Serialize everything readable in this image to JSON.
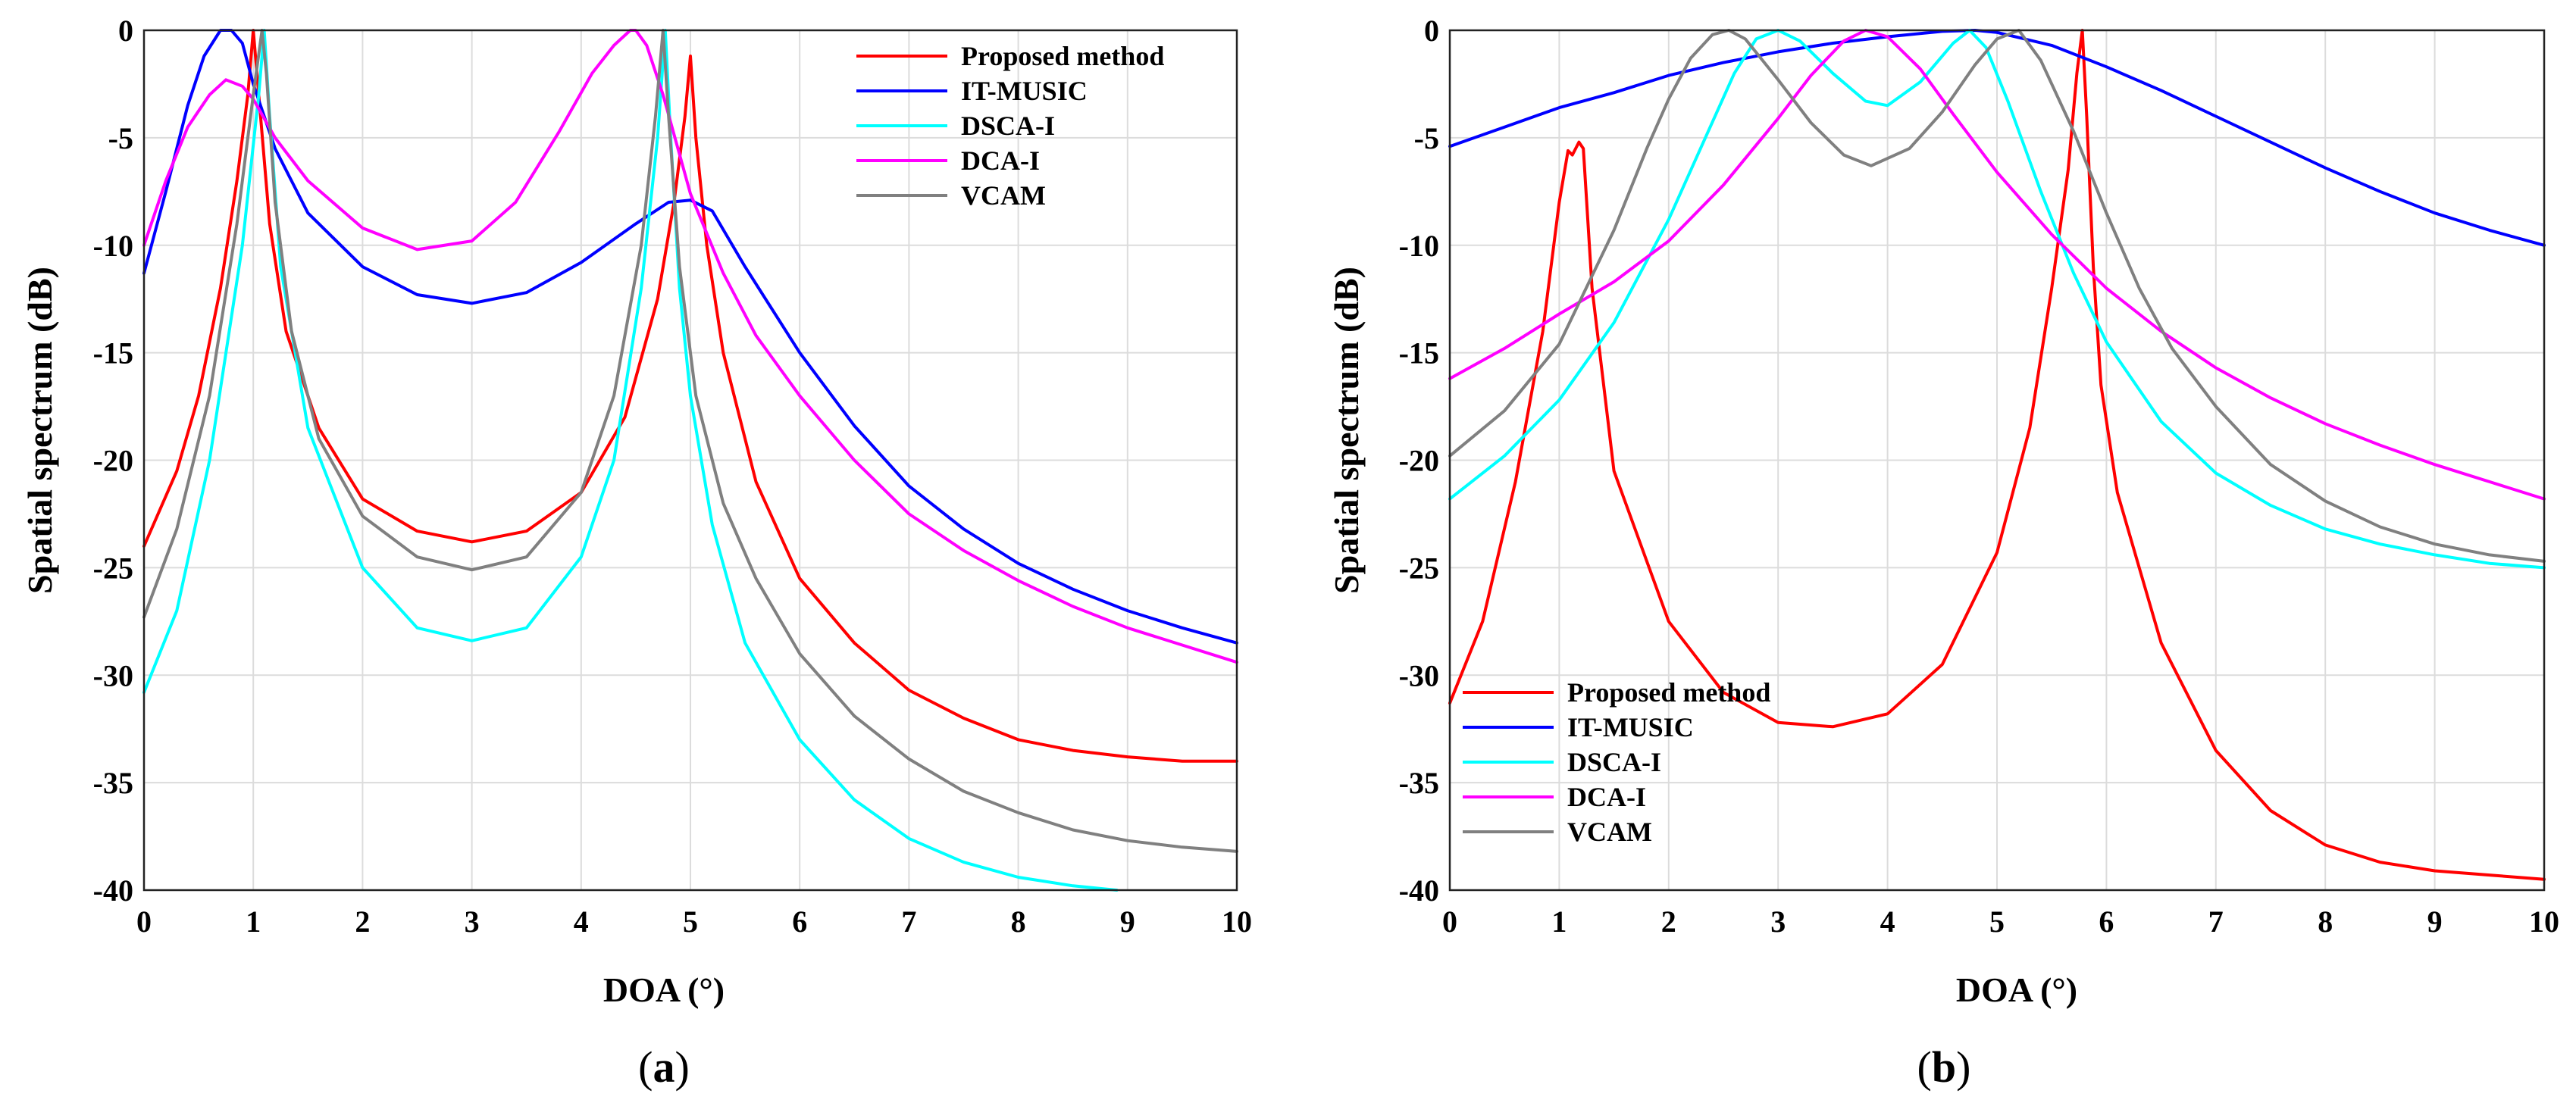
{
  "chart_data": [
    {
      "panel": "a",
      "caption": "(a)",
      "caption_letter": "a",
      "type": "line",
      "xlabel": "DOA (°)",
      "ylabel": "Spatial spectrum (dB)",
      "xlim": [
        0,
        10
      ],
      "ylim": [
        -40,
        0
      ],
      "xticks": [
        0,
        1,
        2,
        3,
        4,
        5,
        6,
        7,
        8,
        9,
        10
      ],
      "yticks": [
        0,
        -5,
        -10,
        -15,
        -20,
        -25,
        -30,
        -35,
        -40
      ],
      "grid": true,
      "legend_position": "top-right",
      "series": [
        {
          "name": "Proposed method",
          "color": "#ff0000",
          "x": [
            0,
            0.3,
            0.5,
            0.7,
            0.85,
            0.95,
            1.0,
            1.05,
            1.15,
            1.3,
            1.6,
            2.0,
            2.5,
            3.0,
            3.5,
            4.0,
            4.4,
            4.7,
            4.85,
            4.95,
            5.0,
            5.05,
            5.15,
            5.3,
            5.6,
            6.0,
            6.5,
            7.0,
            7.5,
            8.0,
            8.5,
            9.0,
            9.5,
            10
          ],
          "y": [
            -24,
            -20.5,
            -17,
            -12,
            -7,
            -3,
            0,
            -3,
            -9,
            -14,
            -18.5,
            -21.8,
            -23.3,
            -23.8,
            -23.3,
            -21.5,
            -18,
            -12.5,
            -8,
            -4,
            -1.2,
            -5,
            -10,
            -15,
            -21,
            -25.5,
            -28.5,
            -30.7,
            -32,
            -33,
            -33.5,
            -33.8,
            -34,
            -34
          ]
        },
        {
          "name": "IT-MUSIC",
          "color": "#0000ff",
          "x": [
            0,
            0.2,
            0.4,
            0.55,
            0.7,
            0.8,
            0.9,
            1.0,
            1.2,
            1.5,
            2.0,
            2.5,
            3.0,
            3.5,
            4.0,
            4.5,
            4.8,
            5.0,
            5.2,
            5.5,
            6.0,
            6.5,
            7.0,
            7.5,
            8.0,
            8.5,
            9.0,
            9.5,
            10
          ],
          "y": [
            -11.3,
            -7.5,
            -3.5,
            -1.2,
            0,
            0,
            -0.6,
            -2.5,
            -5.5,
            -8.5,
            -11,
            -12.3,
            -12.7,
            -12.2,
            -10.8,
            -9,
            -8,
            -7.9,
            -8.4,
            -11,
            -15,
            -18.4,
            -21.2,
            -23.2,
            -24.8,
            -26,
            -27,
            -27.8,
            -28.5
          ]
        },
        {
          "name": "DSCA-I",
          "color": "#00ffff",
          "x": [
            0,
            0.3,
            0.6,
            0.9,
            1.05,
            1.1,
            1.15,
            1.25,
            1.5,
            2.0,
            2.5,
            3.0,
            3.5,
            4.0,
            4.3,
            4.55,
            4.7,
            4.77,
            4.82,
            4.9,
            5.0,
            5.2,
            5.5,
            6.0,
            6.5,
            7.0,
            7.5,
            8.0,
            8.5,
            8.9
          ],
          "y": [
            -30.8,
            -27,
            -20,
            -10,
            -3,
            0,
            -4,
            -11,
            -18.5,
            -25,
            -27.8,
            -28.4,
            -27.8,
            -24.5,
            -20,
            -12,
            -5,
            0,
            -5,
            -12,
            -17,
            -23,
            -28.5,
            -33,
            -35.8,
            -37.6,
            -38.7,
            -39.4,
            -39.8,
            -40
          ]
        },
        {
          "name": "DCA-I",
          "color": "#ff00ff",
          "x": [
            0,
            0.2,
            0.4,
            0.6,
            0.75,
            0.9,
            1.0,
            1.2,
            1.5,
            2.0,
            2.5,
            3.0,
            3.4,
            3.8,
            4.1,
            4.3,
            4.45,
            4.5,
            4.6,
            4.75,
            5.0,
            5.3,
            5.6,
            6.0,
            6.5,
            7.0,
            7.5,
            8.0,
            8.5,
            9.0,
            9.5,
            10
          ],
          "y": [
            -10,
            -7,
            -4.5,
            -3,
            -2.3,
            -2.6,
            -3.2,
            -5,
            -7,
            -9.2,
            -10.2,
            -9.8,
            -8,
            -4.7,
            -2,
            -0.7,
            0,
            0,
            -0.7,
            -3,
            -7.6,
            -11.3,
            -14.2,
            -17,
            -20,
            -22.5,
            -24.2,
            -25.6,
            -26.8,
            -27.8,
            -28.6,
            -29.4
          ]
        },
        {
          "name": "VCAM",
          "color": "#808080",
          "x": [
            0,
            0.3,
            0.6,
            0.85,
            1.0,
            1.08,
            1.12,
            1.2,
            1.35,
            1.6,
            2.0,
            2.5,
            3.0,
            3.5,
            4.0,
            4.3,
            4.55,
            4.68,
            4.75,
            4.8,
            4.9,
            5.05,
            5.3,
            5.6,
            6.0,
            6.5,
            7.0,
            7.5,
            8.0,
            8.5,
            9.0,
            9.5,
            10
          ],
          "y": [
            -27.3,
            -23.2,
            -17,
            -9,
            -3,
            0,
            -2,
            -8,
            -14,
            -19,
            -22.6,
            -24.5,
            -25.1,
            -24.5,
            -21.5,
            -17,
            -10,
            -4,
            0,
            -4,
            -11,
            -17,
            -22,
            -25.5,
            -29,
            -31.9,
            -33.9,
            -35.4,
            -36.4,
            -37.2,
            -37.7,
            -38,
            -38.2
          ]
        }
      ]
    },
    {
      "panel": "b",
      "caption": "(b)",
      "caption_letter": "b",
      "type": "line",
      "xlabel": "DOA (°)",
      "ylabel": "Spatial spectrum (dB)",
      "xlim": [
        0,
        10
      ],
      "ylim": [
        -40,
        0
      ],
      "xticks": [
        0,
        1,
        2,
        3,
        4,
        5,
        6,
        7,
        8,
        9,
        10
      ],
      "yticks": [
        0,
        -5,
        -10,
        -15,
        -20,
        -25,
        -30,
        -35,
        -40
      ],
      "grid": true,
      "legend_position": "bottom-left",
      "series": [
        {
          "name": "Proposed method",
          "color": "#ff0000",
          "x": [
            0,
            0.3,
            0.6,
            0.85,
            1.0,
            1.08,
            1.12,
            1.18,
            1.22,
            1.3,
            1.5,
            2.0,
            2.5,
            3.0,
            3.5,
            4.0,
            4.5,
            5.0,
            5.3,
            5.5,
            5.65,
            5.73,
            5.78,
            5.82,
            5.88,
            5.95,
            6.1,
            6.5,
            7.0,
            7.5,
            8.0,
            8.5,
            9.0,
            9.5,
            10
          ],
          "y": [
            -31.3,
            -27.5,
            -21,
            -14,
            -8,
            -5.6,
            -5.8,
            -5.2,
            -5.5,
            -12,
            -20.5,
            -27.5,
            -30.8,
            -32.2,
            -32.4,
            -31.8,
            -29.5,
            -24.3,
            -18.5,
            -12,
            -6.5,
            -2,
            0,
            -4,
            -11,
            -16.5,
            -21.5,
            -28.5,
            -33.5,
            -36.3,
            -37.9,
            -38.7,
            -39.1,
            -39.3,
            -39.5
          ]
        },
        {
          "name": "IT-MUSIC",
          "color": "#0000ff",
          "x": [
            0,
            0.5,
            1.0,
            1.5,
            2.0,
            2.5,
            3.0,
            3.5,
            4.0,
            4.5,
            4.8,
            5.0,
            5.5,
            6.0,
            6.5,
            7.0,
            7.5,
            8.0,
            8.5,
            9.0,
            9.5,
            10
          ],
          "y": [
            -5.4,
            -4.5,
            -3.6,
            -2.9,
            -2.1,
            -1.5,
            -1,
            -0.6,
            -0.3,
            -0.05,
            0,
            -0.1,
            -0.7,
            -1.7,
            -2.8,
            -4,
            -5.2,
            -6.4,
            -7.5,
            -8.5,
            -9.3,
            -10
          ]
        },
        {
          "name": "DSCA-I",
          "color": "#00ffff",
          "x": [
            0,
            0.5,
            1.0,
            1.5,
            2.0,
            2.3,
            2.6,
            2.8,
            3.0,
            3.2,
            3.5,
            3.8,
            4.0,
            4.3,
            4.6,
            4.75,
            4.9,
            5.1,
            5.4,
            5.7,
            6.0,
            6.5,
            7.0,
            7.5,
            8.0,
            8.5,
            9.0,
            9.5,
            10
          ],
          "y": [
            -21.8,
            -19.8,
            -17.2,
            -13.6,
            -8.8,
            -5.4,
            -2,
            -0.4,
            0,
            -0.5,
            -2,
            -3.3,
            -3.5,
            -2.4,
            -0.6,
            0,
            -0.8,
            -3.3,
            -7.5,
            -11.3,
            -14.5,
            -18.2,
            -20.6,
            -22.1,
            -23.2,
            -23.9,
            -24.4,
            -24.8,
            -25
          ]
        },
        {
          "name": "DCA-I",
          "color": "#ff00ff",
          "x": [
            0,
            0.5,
            1.0,
            1.5,
            2.0,
            2.5,
            3.0,
            3.3,
            3.6,
            3.8,
            4.0,
            4.3,
            4.6,
            5.0,
            5.5,
            6.0,
            6.5,
            7.0,
            7.5,
            8.0,
            8.5,
            9.0,
            9.5,
            10
          ],
          "y": [
            -16.2,
            -14.8,
            -13.2,
            -11.7,
            -9.8,
            -7.2,
            -4.1,
            -2.1,
            -0.5,
            0,
            -0.3,
            -1.8,
            -3.9,
            -6.6,
            -9.5,
            -12,
            -14,
            -15.7,
            -17.1,
            -18.3,
            -19.3,
            -20.2,
            -21,
            -21.8
          ]
        },
        {
          "name": "VCAM",
          "color": "#808080",
          "x": [
            0,
            0.5,
            1.0,
            1.5,
            1.8,
            2.0,
            2.2,
            2.4,
            2.55,
            2.7,
            3.0,
            3.3,
            3.6,
            3.85,
            4.2,
            4.5,
            4.8,
            5.0,
            5.2,
            5.4,
            5.7,
            6.0,
            6.3,
            6.6,
            7.0,
            7.5,
            8.0,
            8.5,
            9.0,
            9.5,
            10
          ],
          "y": [
            -19.8,
            -17.7,
            -14.6,
            -9.3,
            -5.5,
            -3.2,
            -1.3,
            -0.2,
            0,
            -0.4,
            -2.3,
            -4.3,
            -5.8,
            -6.3,
            -5.5,
            -3.8,
            -1.6,
            -0.4,
            0,
            -1.4,
            -4.7,
            -8.5,
            -12,
            -14.8,
            -17.5,
            -20.2,
            -21.9,
            -23.1,
            -23.9,
            -24.4,
            -24.7
          ]
        }
      ]
    }
  ]
}
